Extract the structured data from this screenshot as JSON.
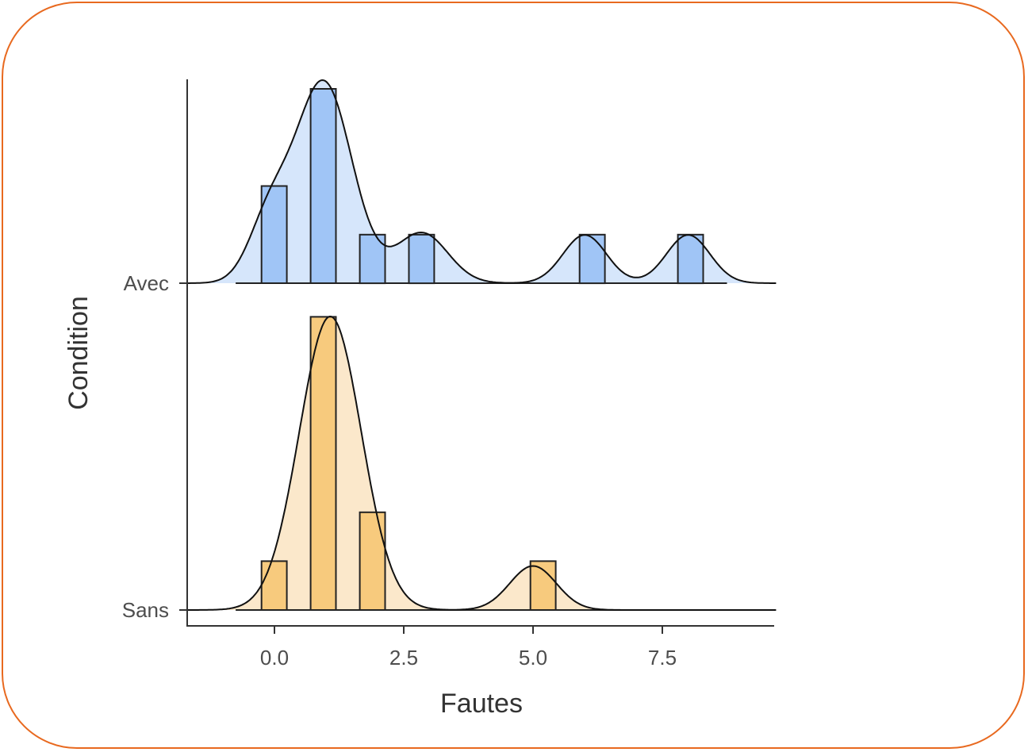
{
  "chart_data": {
    "type": "ridgeline",
    "xlabel": "Fautes",
    "ylabel": "Condition",
    "xlim": [
      -1.7,
      9.7
    ],
    "x_ticks": [
      0.0,
      2.5,
      5.0,
      7.5
    ],
    "x_tick_labels": [
      "0.0",
      "2.5",
      "5.0",
      "7.5"
    ],
    "bin_width": 0.95,
    "grid": false,
    "legend": "none",
    "series": [
      {
        "name": "Avec",
        "fill": "#9dc3f5",
        "density_fill": "#d6e6fb",
        "bins": [
          -0.25,
          0.7,
          1.65,
          2.6,
          5.9,
          7.8
        ],
        "counts": [
          2,
          4,
          1,
          1,
          1,
          1
        ],
        "density_modes": [
          {
            "mean": 0.95,
            "sd": 0.55,
            "weight": 1.0
          },
          {
            "mean": -0.1,
            "sd": 0.4,
            "weight": 0.3
          },
          {
            "mean": 2.85,
            "sd": 0.5,
            "weight": 0.25
          },
          {
            "mean": 6.0,
            "sd": 0.42,
            "weight": 0.24
          },
          {
            "mean": 8.0,
            "sd": 0.42,
            "weight": 0.24
          }
        ]
      },
      {
        "name": "Sans",
        "fill": "#f7c878",
        "density_fill": "#fbe8cb",
        "bins": [
          -0.25,
          0.7,
          1.65,
          4.95
        ],
        "counts": [
          1,
          6,
          2,
          1
        ],
        "density_modes": [
          {
            "mean": 1.08,
            "sd": 0.6,
            "weight": 1.0
          },
          {
            "mean": 5.0,
            "sd": 0.45,
            "weight": 0.15
          }
        ]
      }
    ]
  }
}
